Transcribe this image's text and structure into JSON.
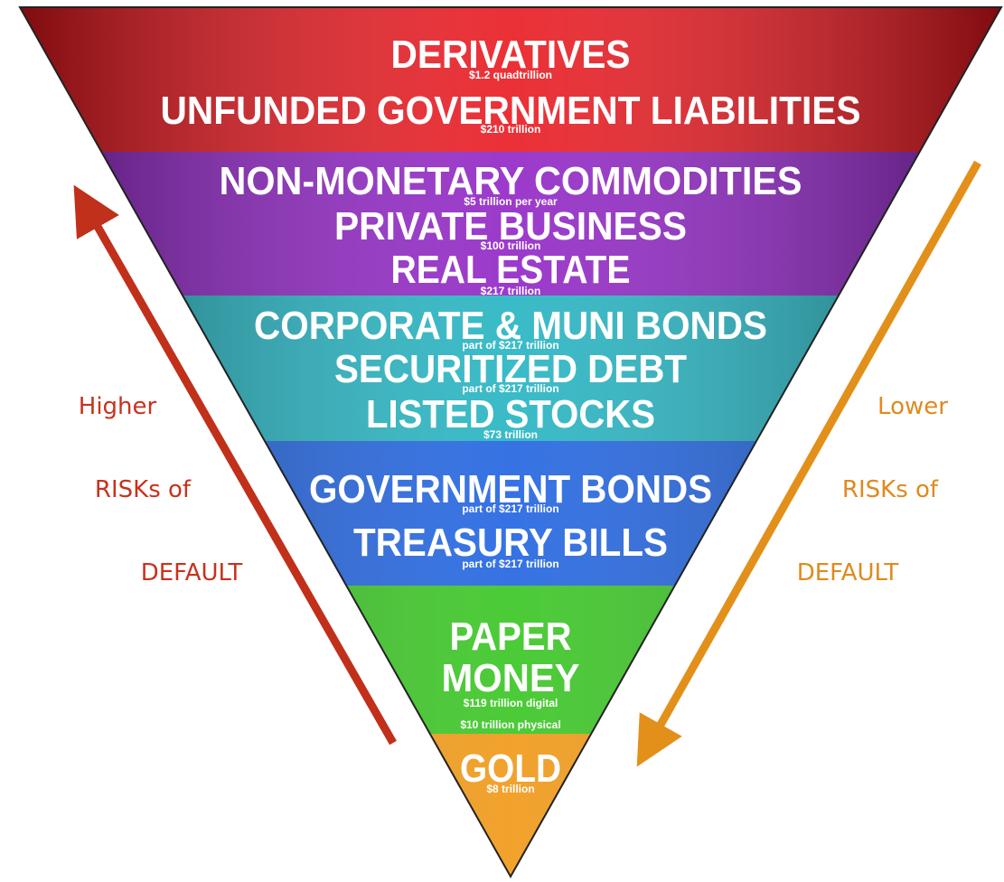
{
  "tiers": [
    {
      "color": "#e8141b",
      "items": [
        {
          "name": [
            "DERIVATIVES"
          ],
          "values": [
            "$1.2 quadtrillion"
          ]
        },
        {
          "name": [
            "UNFUNDED GOVERNMENT LIABILITIES"
          ],
          "values": [
            "$210 trillion"
          ]
        }
      ]
    },
    {
      "color": "#8e1fc4",
      "items": [
        {
          "name": [
            "NON-MONETARY COMMODITIES"
          ],
          "values": [
            "$5 trillion per year"
          ]
        },
        {
          "name": [
            "PRIVATE BUSINESS"
          ],
          "values": [
            "$100 trillion"
          ]
        },
        {
          "name": [
            "REAL ESTATE"
          ],
          "values": [
            "$217 trillion"
          ]
        }
      ]
    },
    {
      "color": "#1fb2c0",
      "items": [
        {
          "name": [
            "CORPORATE & MUNI BONDS"
          ],
          "values": [
            "part of $217 trillion"
          ]
        },
        {
          "name": [
            "SECURITIZED DEBT"
          ],
          "values": [
            "part of $217 trillion"
          ]
        },
        {
          "name": [
            "LISTED STOCKS"
          ],
          "values": [
            "$73 trillion"
          ]
        }
      ]
    },
    {
      "color": "#1a5fe0",
      "items": [
        {
          "name": [
            "GOVERNMENT BONDS"
          ],
          "values": [
            "part of $217 trillion"
          ]
        },
        {
          "name": [
            "TREASURY BILLS"
          ],
          "values": [
            "part of $217 trillion"
          ]
        }
      ]
    },
    {
      "color": "#33c41c",
      "items": [
        {
          "name": [
            "PAPER",
            "MONEY"
          ],
          "values": [
            "$119 trillion digital",
            "$10 trillion physical"
          ]
        }
      ]
    },
    {
      "color": "#f0960f",
      "items": [
        {
          "name": [
            "GOLD"
          ],
          "values": [
            "$8 trillion"
          ]
        }
      ]
    }
  ],
  "left_label": {
    "lines": [
      "Higher",
      "RISKs of",
      "DEFAULT"
    ],
    "color": "#c8321e"
  },
  "right_label": {
    "lines": [
      "Lower",
      "RISKs of",
      "DEFAULT"
    ],
    "color": "#e08a1e"
  }
}
